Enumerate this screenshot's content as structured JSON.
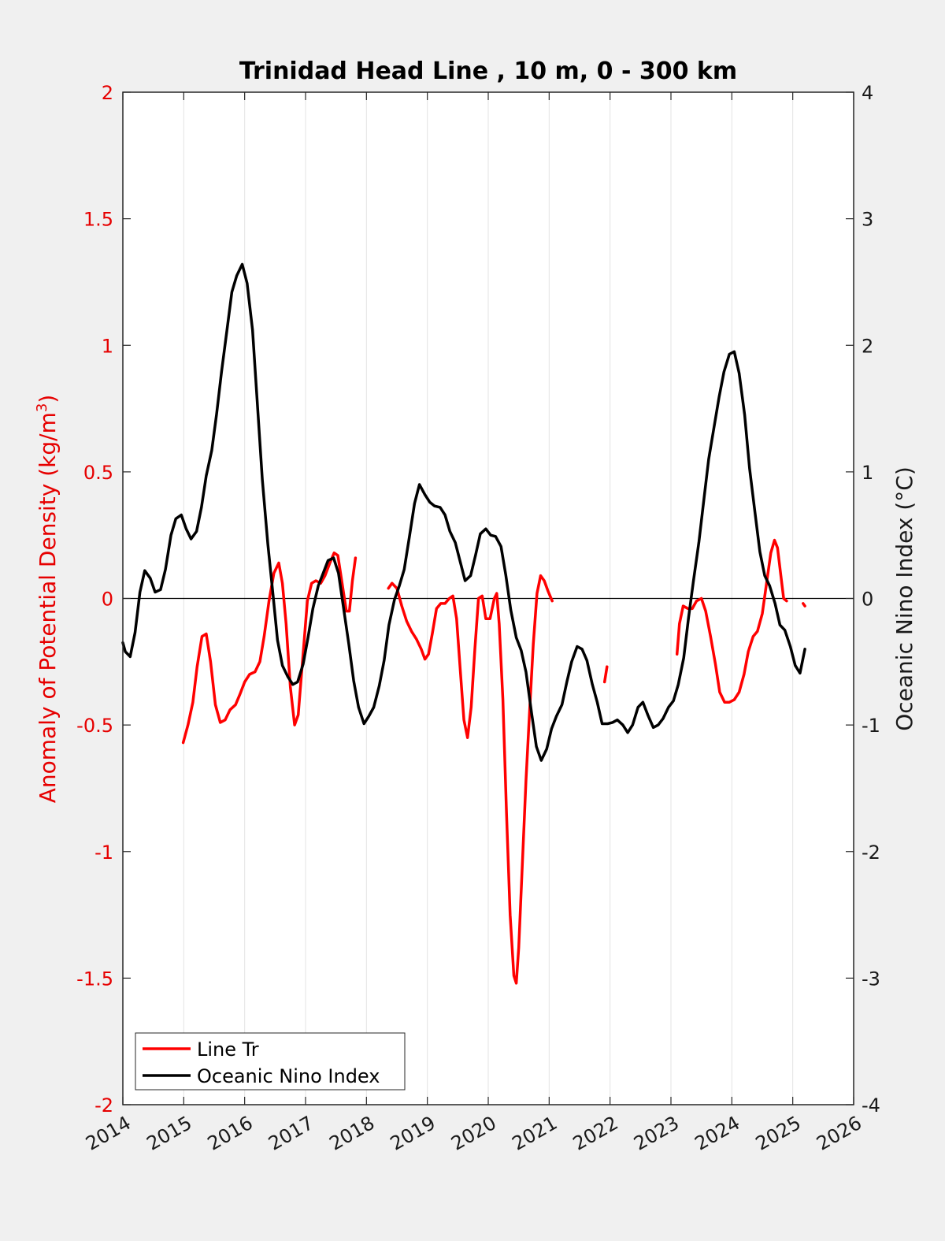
{
  "chart_data": {
    "type": "line",
    "title": "Trinidad Head Line , 10 m, 0 - 300 km",
    "ylabel_left": "Anomaly of Potential Density (kg/m",
    "ylabel_left_sup": "3",
    "ylabel_left_end": ")",
    "ylabel_right": "Oceanic Nino Index (°C)",
    "xlim": [
      2014,
      2026
    ],
    "ylim_left": [
      -2,
      2
    ],
    "ylim_right": [
      -4,
      4
    ],
    "x_ticks": [
      "2014",
      "2015",
      "2016",
      "2017",
      "2018",
      "2019",
      "2020",
      "2021",
      "2022",
      "2023",
      "2024",
      "2025",
      "2026"
    ],
    "y_left_ticks": [
      "-2",
      "-1.5",
      "-1",
      "-0.5",
      "0",
      "0.5",
      "1",
      "1.5",
      "2"
    ],
    "y_right_ticks": [
      "-4",
      "-3",
      "-2",
      "-1",
      "0",
      "1",
      "2",
      "3",
      "4"
    ],
    "grid": "vertical",
    "legend_position": "bottom-left",
    "colors": {
      "line_tr": "#ff0000",
      "oni": "#000000",
      "left_axis": "#e60000"
    },
    "series": [
      {
        "name": "Line Tr",
        "axis": "left",
        "segments": [
          [
            [
              2014.99,
              -0.57
            ],
            [
              2015.07,
              -0.5
            ],
            [
              2015.15,
              -0.41
            ],
            [
              2015.22,
              -0.27
            ],
            [
              2015.3,
              -0.15
            ],
            [
              2015.37,
              -0.14
            ],
            [
              2015.44,
              -0.25
            ],
            [
              2015.52,
              -0.42
            ],
            [
              2015.6,
              -0.49
            ],
            [
              2015.68,
              -0.48
            ],
            [
              2015.76,
              -0.44
            ],
            [
              2015.85,
              -0.42
            ],
            [
              2015.92,
              -0.38
            ],
            [
              2016.0,
              -0.33
            ],
            [
              2016.08,
              -0.3
            ],
            [
              2016.17,
              -0.29
            ],
            [
              2016.25,
              -0.25
            ],
            [
              2016.32,
              -0.15
            ],
            [
              2016.4,
              -0.01
            ],
            [
              2016.48,
              0.1
            ],
            [
              2016.56,
              0.14
            ],
            [
              2016.62,
              0.06
            ],
            [
              2016.68,
              -0.1
            ],
            [
              2016.75,
              -0.35
            ],
            [
              2016.82,
              -0.5
            ],
            [
              2016.88,
              -0.46
            ],
            [
              2016.95,
              -0.25
            ],
            [
              2017.03,
              -0.01
            ],
            [
              2017.1,
              0.06
            ],
            [
              2017.17,
              0.07
            ],
            [
              2017.25,
              0.06
            ],
            [
              2017.32,
              0.09
            ],
            [
              2017.4,
              0.14
            ],
            [
              2017.47,
              0.18
            ],
            [
              2017.53,
              0.17
            ],
            [
              2017.6,
              0.06
            ],
            [
              2017.67,
              -0.05
            ],
            [
              2017.72,
              -0.05
            ],
            [
              2017.77,
              0.07
            ],
            [
              2017.82,
              0.16
            ]
          ],
          [
            [
              2018.36,
              0.04
            ],
            [
              2018.42,
              0.06
            ],
            [
              2018.5,
              0.04
            ],
            [
              2018.58,
              -0.03
            ],
            [
              2018.66,
              -0.09
            ],
            [
              2018.74,
              -0.13
            ],
            [
              2018.82,
              -0.16
            ],
            [
              2018.9,
              -0.2
            ],
            [
              2018.96,
              -0.24
            ],
            [
              2019.02,
              -0.22
            ],
            [
              2019.08,
              -0.14
            ],
            [
              2019.15,
              -0.04
            ],
            [
              2019.22,
              -0.02
            ],
            [
              2019.29,
              -0.02
            ],
            [
              2019.36,
              0.0
            ],
            [
              2019.42,
              0.01
            ],
            [
              2019.48,
              -0.08
            ],
            [
              2019.54,
              -0.28
            ],
            [
              2019.6,
              -0.48
            ],
            [
              2019.66,
              -0.55
            ],
            [
              2019.72,
              -0.43
            ],
            [
              2019.78,
              -0.2
            ],
            [
              2019.84,
              0.0
            ],
            [
              2019.9,
              0.01
            ],
            [
              2019.96,
              -0.08
            ],
            [
              2020.03,
              -0.08
            ],
            [
              2020.1,
              0.0
            ],
            [
              2020.14,
              0.02
            ],
            [
              2020.18,
              -0.1
            ],
            [
              2020.24,
              -0.4
            ],
            [
              2020.3,
              -0.85
            ],
            [
              2020.36,
              -1.25
            ],
            [
              2020.42,
              -1.49
            ],
            [
              2020.46,
              -1.52
            ],
            [
              2020.5,
              -1.38
            ],
            [
              2020.56,
              -1.05
            ],
            [
              2020.62,
              -0.72
            ],
            [
              2020.68,
              -0.44
            ],
            [
              2020.74,
              -0.18
            ],
            [
              2020.8,
              0.02
            ],
            [
              2020.86,
              0.09
            ],
            [
              2020.92,
              0.07
            ],
            [
              2020.98,
              0.03
            ],
            [
              2021.05,
              -0.01
            ]
          ],
          [
            [
              2021.91,
              -0.33
            ],
            [
              2021.95,
              -0.27
            ]
          ],
          [
            [
              2023.1,
              -0.22
            ],
            [
              2023.14,
              -0.1
            ],
            [
              2023.2,
              -0.03
            ],
            [
              2023.28,
              -0.04
            ],
            [
              2023.35,
              -0.04
            ],
            [
              2023.42,
              -0.01
            ],
            [
              2023.5,
              0.0
            ],
            [
              2023.57,
              -0.05
            ],
            [
              2023.65,
              -0.15
            ],
            [
              2023.73,
              -0.26
            ],
            [
              2023.8,
              -0.37
            ],
            [
              2023.88,
              -0.41
            ],
            [
              2023.96,
              -0.41
            ],
            [
              2024.04,
              -0.4
            ],
            [
              2024.12,
              -0.37
            ],
            [
              2024.2,
              -0.3
            ],
            [
              2024.27,
              -0.21
            ],
            [
              2024.35,
              -0.15
            ],
            [
              2024.42,
              -0.13
            ],
            [
              2024.5,
              -0.06
            ],
            [
              2024.57,
              0.06
            ],
            [
              2024.64,
              0.18
            ],
            [
              2024.7,
              0.23
            ],
            [
              2024.75,
              0.2
            ],
            [
              2024.8,
              0.1
            ],
            [
              2024.85,
              0.0
            ],
            [
              2024.9,
              -0.01
            ]
          ],
          [
            [
              2025.17,
              -0.02
            ],
            [
              2025.2,
              -0.03
            ]
          ]
        ]
      },
      {
        "name": "Oceanic Nino Index",
        "axis": "right",
        "segments": [
          [
            [
              2014.0,
              -0.35
            ],
            [
              2014.04,
              -0.42
            ],
            [
              2014.12,
              -0.46
            ],
            [
              2014.2,
              -0.27
            ],
            [
              2014.28,
              0.05
            ],
            [
              2014.36,
              0.22
            ],
            [
              2014.45,
              0.16
            ],
            [
              2014.53,
              0.05
            ],
            [
              2014.62,
              0.07
            ],
            [
              2014.7,
              0.23
            ],
            [
              2014.79,
              0.5
            ],
            [
              2014.87,
              0.63
            ],
            [
              2014.96,
              0.66
            ],
            [
              2015.04,
              0.55
            ],
            [
              2015.12,
              0.47
            ],
            [
              2015.21,
              0.53
            ],
            [
              2015.29,
              0.72
            ],
            [
              2015.37,
              0.97
            ],
            [
              2015.46,
              1.17
            ],
            [
              2015.54,
              1.46
            ],
            [
              2015.62,
              1.79
            ],
            [
              2015.71,
              2.12
            ],
            [
              2015.79,
              2.42
            ],
            [
              2015.87,
              2.55
            ],
            [
              2015.96,
              2.64
            ],
            [
              2016.04,
              2.49
            ],
            [
              2016.13,
              2.12
            ],
            [
              2016.21,
              1.53
            ],
            [
              2016.29,
              0.94
            ],
            [
              2016.38,
              0.43
            ],
            [
              2016.46,
              0.06
            ],
            [
              2016.54,
              -0.33
            ],
            [
              2016.62,
              -0.53
            ],
            [
              2016.71,
              -0.62
            ],
            [
              2016.79,
              -0.68
            ],
            [
              2016.87,
              -0.66
            ],
            [
              2016.96,
              -0.52
            ],
            [
              2017.04,
              -0.31
            ],
            [
              2017.12,
              -0.08
            ],
            [
              2017.21,
              0.1
            ],
            [
              2017.29,
              0.2
            ],
            [
              2017.37,
              0.3
            ],
            [
              2017.46,
              0.32
            ],
            [
              2017.54,
              0.2
            ],
            [
              2017.62,
              -0.06
            ],
            [
              2017.71,
              -0.36
            ],
            [
              2017.79,
              -0.65
            ],
            [
              2017.87,
              -0.86
            ],
            [
              2017.96,
              -0.99
            ],
            [
              2018.04,
              -0.93
            ],
            [
              2018.12,
              -0.86
            ],
            [
              2018.21,
              -0.69
            ],
            [
              2018.29,
              -0.49
            ],
            [
              2018.37,
              -0.21
            ],
            [
              2018.46,
              -0.01
            ],
            [
              2018.54,
              0.1
            ],
            [
              2018.62,
              0.23
            ],
            [
              2018.71,
              0.5
            ],
            [
              2018.79,
              0.75
            ],
            [
              2018.87,
              0.9
            ],
            [
              2018.96,
              0.82
            ],
            [
              2019.04,
              0.76
            ],
            [
              2019.12,
              0.73
            ],
            [
              2019.21,
              0.72
            ],
            [
              2019.29,
              0.66
            ],
            [
              2019.37,
              0.53
            ],
            [
              2019.46,
              0.44
            ],
            [
              2019.54,
              0.29
            ],
            [
              2019.62,
              0.14
            ],
            [
              2019.71,
              0.18
            ],
            [
              2019.79,
              0.34
            ],
            [
              2019.87,
              0.51
            ],
            [
              2019.96,
              0.55
            ],
            [
              2020.04,
              0.5
            ],
            [
              2020.12,
              0.49
            ],
            [
              2020.21,
              0.41
            ],
            [
              2020.29,
              0.18
            ],
            [
              2020.37,
              -0.09
            ],
            [
              2020.46,
              -0.31
            ],
            [
              2020.54,
              -0.41
            ],
            [
              2020.62,
              -0.58
            ],
            [
              2020.71,
              -0.9
            ],
            [
              2020.79,
              -1.17
            ],
            [
              2020.87,
              -1.28
            ],
            [
              2020.96,
              -1.19
            ],
            [
              2021.04,
              -1.03
            ],
            [
              2021.12,
              -0.93
            ],
            [
              2021.21,
              -0.84
            ],
            [
              2021.29,
              -0.66
            ],
            [
              2021.37,
              -0.5
            ],
            [
              2021.46,
              -0.38
            ],
            [
              2021.54,
              -0.4
            ],
            [
              2021.62,
              -0.49
            ],
            [
              2021.71,
              -0.68
            ],
            [
              2021.79,
              -0.82
            ],
            [
              2021.87,
              -0.99
            ],
            [
              2021.96,
              -0.99
            ],
            [
              2022.04,
              -0.98
            ],
            [
              2022.12,
              -0.96
            ],
            [
              2022.21,
              -1.0
            ],
            [
              2022.29,
              -1.06
            ],
            [
              2022.37,
              -1.0
            ],
            [
              2022.46,
              -0.86
            ],
            [
              2022.54,
              -0.82
            ],
            [
              2022.62,
              -0.92
            ],
            [
              2022.71,
              -1.02
            ],
            [
              2022.79,
              -1.0
            ],
            [
              2022.87,
              -0.95
            ],
            [
              2022.96,
              -0.86
            ],
            [
              2023.04,
              -0.81
            ],
            [
              2023.12,
              -0.68
            ],
            [
              2023.21,
              -0.47
            ],
            [
              2023.29,
              -0.15
            ],
            [
              2023.37,
              0.14
            ],
            [
              2023.46,
              0.45
            ],
            [
              2023.54,
              0.78
            ],
            [
              2023.62,
              1.1
            ],
            [
              2023.71,
              1.36
            ],
            [
              2023.79,
              1.59
            ],
            [
              2023.87,
              1.79
            ],
            [
              2023.96,
              1.93
            ],
            [
              2024.04,
              1.95
            ],
            [
              2024.12,
              1.78
            ],
            [
              2024.21,
              1.45
            ],
            [
              2024.29,
              1.03
            ],
            [
              2024.37,
              0.72
            ],
            [
              2024.46,
              0.37
            ],
            [
              2024.54,
              0.18
            ],
            [
              2024.62,
              0.1
            ],
            [
              2024.71,
              -0.04
            ],
            [
              2024.79,
              -0.21
            ],
            [
              2024.87,
              -0.25
            ],
            [
              2024.96,
              -0.38
            ],
            [
              2025.04,
              -0.53
            ],
            [
              2025.12,
              -0.59
            ],
            [
              2025.2,
              -0.4
            ]
          ]
        ]
      }
    ]
  }
}
